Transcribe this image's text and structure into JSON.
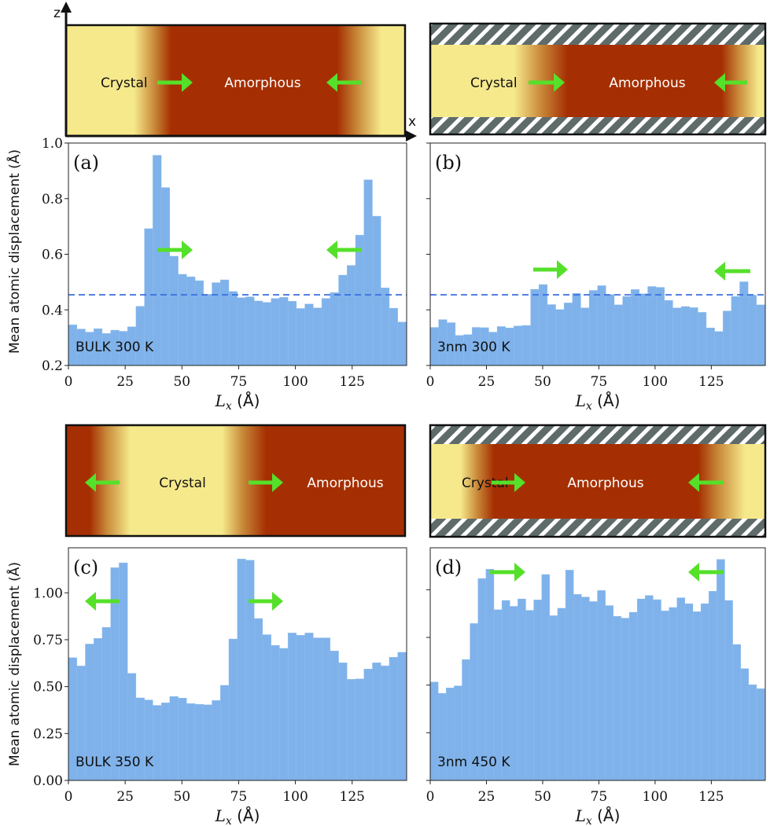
{
  "colors": {
    "bar": "#7fb2ea",
    "hline": "#3a6ee0",
    "arrow": "#55e02a",
    "crystal": "#f6e98c",
    "amorphous": "#a52f02",
    "hatch_dark": "#5f6b6b"
  },
  "schematics": [
    {
      "crystal_label": "Crystal",
      "amorphous_label": "Amorphous",
      "confined": false,
      "axes": {
        "z": "z",
        "x": "x"
      }
    },
    {
      "crystal_label": "Crystal",
      "amorphous_label": "Amorphous",
      "confined": true
    },
    {
      "crystal_label": "Crystal",
      "amorphous_label": "Amorphous",
      "confined": false
    },
    {
      "crystal_label": "Crystal",
      "amorphous_label": "Amorphous",
      "confined": true
    }
  ],
  "chart_data": [
    {
      "type": "bar",
      "panel": "(a)",
      "annotation": "BULK 300 K",
      "xlabel": "L_x (Å)",
      "ylabel": "Mean atomic displacement (Å)",
      "xlim": [
        0,
        149
      ],
      "ylim": [
        0.2,
        1.0
      ],
      "x_start": 0,
      "bin_width": 3.72,
      "xticks": [
        0,
        25,
        50,
        75,
        100,
        125
      ],
      "yticks": [
        0.2,
        0.4,
        0.6,
        0.8,
        1.0
      ],
      "ytick_labels": [
        "0.2",
        "0.4",
        "0.6",
        "0.8",
        "1.0"
      ],
      "hline": 0.454,
      "arrows": [
        "right",
        "left"
      ],
      "values": [
        0.346,
        0.331,
        0.32,
        0.332,
        0.315,
        0.327,
        0.323,
        0.339,
        0.413,
        0.692,
        0.956,
        0.84,
        0.593,
        0.528,
        0.519,
        0.505,
        0.456,
        0.498,
        0.508,
        0.466,
        0.444,
        0.447,
        0.432,
        0.427,
        0.441,
        0.445,
        0.431,
        0.405,
        0.421,
        0.407,
        0.441,
        0.462,
        0.525,
        0.56,
        0.669,
        0.868,
        0.737,
        0.479,
        0.406,
        0.356
      ]
    },
    {
      "type": "bar",
      "panel": "(b)",
      "annotation": "3nm 300 K",
      "xlabel": "L_x (Å)",
      "ylabel": "",
      "xlim": [
        0,
        149
      ],
      "ylim": [
        0.2,
        1.0
      ],
      "x_start": 0,
      "bin_width": 3.72,
      "xticks": [
        0,
        25,
        50,
        75,
        100,
        125
      ],
      "yticks": [
        0.2,
        0.4,
        0.6,
        0.8,
        1.0
      ],
      "ytick_labels": [],
      "hline": 0.454,
      "arrows": [
        "right",
        "left"
      ],
      "values": [
        0.337,
        0.365,
        0.354,
        0.308,
        0.311,
        0.337,
        0.336,
        0.32,
        0.34,
        0.335,
        0.342,
        0.344,
        0.474,
        0.491,
        0.419,
        0.401,
        0.425,
        0.459,
        0.407,
        0.47,
        0.487,
        0.455,
        0.418,
        0.448,
        0.473,
        0.458,
        0.484,
        0.481,
        0.434,
        0.407,
        0.412,
        0.408,
        0.391,
        0.335,
        0.322,
        0.396,
        0.448,
        0.501,
        0.453,
        0.418
      ]
    },
    {
      "type": "bar",
      "panel": "(c)",
      "annotation": "BULK 350 K",
      "xlabel": "L_x (Å)",
      "ylabel": "Mean atomic displacement (Å)",
      "xlim": [
        0,
        149
      ],
      "ylim": [
        0,
        1.24
      ],
      "x_start": 0,
      "bin_width": 3.72,
      "xticks": [
        0,
        25,
        50,
        75,
        100,
        125
      ],
      "yticks": [
        0,
        0.25,
        0.5,
        0.75,
        1.0
      ],
      "ytick_labels": [
        "0.00",
        "0.25",
        "0.50",
        "0.75",
        "1.00"
      ],
      "arrows": [
        "left",
        "right"
      ],
      "values": [
        0.654,
        0.61,
        0.727,
        0.757,
        0.816,
        1.134,
        1.16,
        0.571,
        0.44,
        0.429,
        0.4,
        0.414,
        0.447,
        0.439,
        0.41,
        0.406,
        0.403,
        0.426,
        0.507,
        0.754,
        1.18,
        1.174,
        0.863,
        0.777,
        0.72,
        0.704,
        0.786,
        0.774,
        0.786,
        0.76,
        0.76,
        0.69,
        0.627,
        0.539,
        0.541,
        0.594,
        0.627,
        0.611,
        0.657,
        0.683
      ]
    },
    {
      "type": "bar",
      "panel": "(d)",
      "annotation": "3nm 450 K",
      "xlabel": "L_x (Å)",
      "ylabel": "",
      "xlim": [
        0,
        149
      ],
      "ylim": [
        0,
        1.22
      ],
      "x_start": 0,
      "bin_width": 3.54,
      "xticks": [
        0,
        25,
        50,
        75,
        100,
        125
      ],
      "yticks": [
        0,
        0.25,
        0.5,
        0.75,
        1.0
      ],
      "ytick_labels": [],
      "arrows": [
        "right",
        "left"
      ],
      "values": [
        0.516,
        0.457,
        0.485,
        0.496,
        0.634,
        0.823,
        1.059,
        1.108,
        0.895,
        0.944,
        0.913,
        0.952,
        0.892,
        0.947,
        1.08,
        0.864,
        0.903,
        1.103,
        0.976,
        0.962,
        0.938,
        0.996,
        0.917,
        0.861,
        0.851,
        0.882,
        0.952,
        0.97,
        0.948,
        0.889,
        0.907,
        0.958,
        0.927,
        0.885,
        0.927,
        0.992,
        1.159,
        0.944,
        0.713,
        0.586,
        0.502,
        0.481
      ]
    }
  ]
}
